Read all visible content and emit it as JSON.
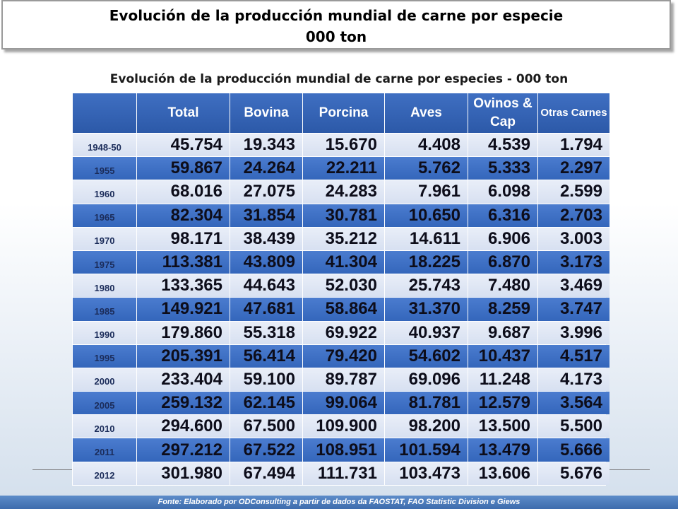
{
  "header": {
    "title_line1": "Evolución de la producción mundial de carne por especie",
    "title_line2": "000 ton"
  },
  "chart_data": {
    "type": "table",
    "title": "Evolución de la producción mundial de carne por especies - 000 ton",
    "columns": [
      "Total",
      "Bovina",
      "Porcina",
      "Aves",
      "Ovinos & Cap",
      "Otras Carnes"
    ],
    "rows": [
      {
        "year": "1948-50",
        "values": [
          "45.754",
          "19.343",
          "15.670",
          "4.408",
          "4.539",
          "1.794"
        ]
      },
      {
        "year": "1955",
        "values": [
          "59.867",
          "24.264",
          "22.211",
          "5.762",
          "5.333",
          "2.297"
        ]
      },
      {
        "year": "1960",
        "values": [
          "68.016",
          "27.075",
          "24.283",
          "7.961",
          "6.098",
          "2.599"
        ]
      },
      {
        "year": "1965",
        "values": [
          "82.304",
          "31.854",
          "30.781",
          "10.650",
          "6.316",
          "2.703"
        ]
      },
      {
        "year": "1970",
        "values": [
          "98.171",
          "38.439",
          "35.212",
          "14.611",
          "6.906",
          "3.003"
        ]
      },
      {
        "year": "1975",
        "values": [
          "113.381",
          "43.809",
          "41.304",
          "18.225",
          "6.870",
          "3.173"
        ]
      },
      {
        "year": "1980",
        "values": [
          "133.365",
          "44.643",
          "52.030",
          "25.743",
          "7.480",
          "3.469"
        ]
      },
      {
        "year": "1985",
        "values": [
          "149.921",
          "47.681",
          "58.864",
          "31.370",
          "8.259",
          "3.747"
        ]
      },
      {
        "year": "1990",
        "values": [
          "179.860",
          "55.318",
          "69.922",
          "40.937",
          "9.687",
          "3.996"
        ]
      },
      {
        "year": "1995",
        "values": [
          "205.391",
          "56.414",
          "79.420",
          "54.602",
          "10.437",
          "4.517"
        ]
      },
      {
        "year": "2000",
        "values": [
          "233.404",
          "59.100",
          "89.787",
          "69.096",
          "11.248",
          "4.173"
        ]
      },
      {
        "year": "2005",
        "values": [
          "259.132",
          "62.145",
          "99.064",
          "81.781",
          "12.579",
          "3.564"
        ]
      },
      {
        "year": "2010",
        "values": [
          "294.600",
          "67.500",
          "109.900",
          "98.200",
          "13.500",
          "5.500"
        ]
      },
      {
        "year": "2011",
        "values": [
          "297.212",
          "67.522",
          "108.951",
          "101.594",
          "13.479",
          "5.666"
        ]
      },
      {
        "year": "2012",
        "values": [
          "301.980",
          "67.494",
          "111.731",
          "103.473",
          "13.606",
          "5.676"
        ]
      }
    ]
  },
  "footer": {
    "source": "Fonte: Elaborado por ODConsulting a partir de dados da FAOSTAT, FAO  Statistic Division e Giews"
  }
}
